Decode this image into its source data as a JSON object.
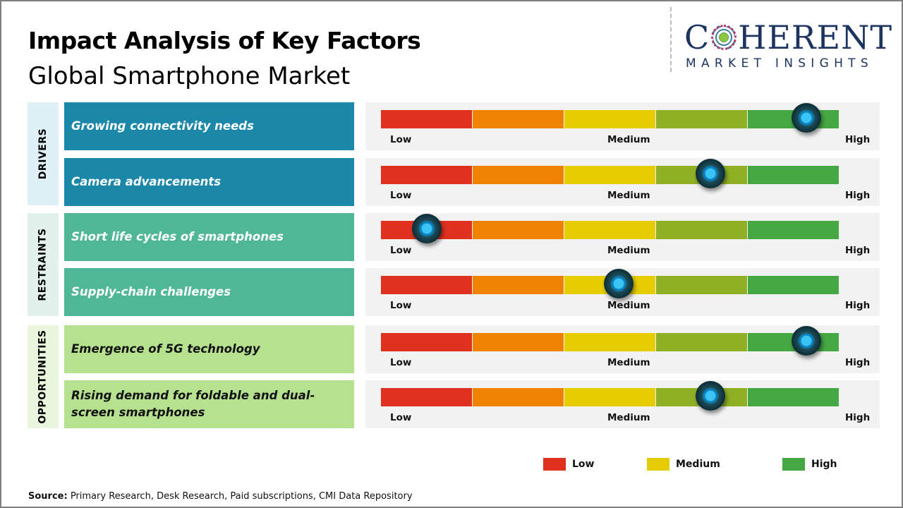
{
  "header": {
    "title": "Impact Analysis of Key Factors",
    "subtitle": "Global Smartphone Market"
  },
  "logo": {
    "main": "COHERENT",
    "sub": "MARKET INSIGHTS"
  },
  "colors": {
    "drivers": "#1b87a9",
    "restraints": "#4fb797",
    "opportunities": "#b6e28f",
    "segments": [
      "#e0301e",
      "#ef8200",
      "#e6cc00",
      "#8fb025",
      "#45a843"
    ]
  },
  "chart_data": {
    "type": "gauge",
    "scale_labels": [
      "Low",
      "Medium",
      "High"
    ],
    "categories": [
      {
        "name": "DRIVERS",
        "factors": [
          {
            "label": "Growing connectivity needs",
            "impact": 0.93
          },
          {
            "label": "Camera advancements",
            "impact": 0.72
          }
        ]
      },
      {
        "name": "RESTRAINTS",
        "factors": [
          {
            "label": "Short life cycles of smartphones",
            "impact": 0.1
          },
          {
            "label": "Supply-chain challenges",
            "impact": 0.52
          }
        ]
      },
      {
        "name": "OPPORTUNITIES",
        "factors": [
          {
            "label": "Emergence  of 5G technology",
            "impact": 0.93
          },
          {
            "label": "Rising demand for foldable and dual-screen smartphones",
            "impact": 0.72
          }
        ]
      }
    ],
    "legend": [
      {
        "label": "Low",
        "color": "#e0301e"
      },
      {
        "label": "Medium",
        "color": "#e6cc00"
      },
      {
        "label": "High",
        "color": "#45a843"
      }
    ]
  },
  "footer": {
    "source_label": "Source:",
    "source_text": " Primary Research, Desk Research, Paid subscriptions, CMI Data Repository"
  }
}
